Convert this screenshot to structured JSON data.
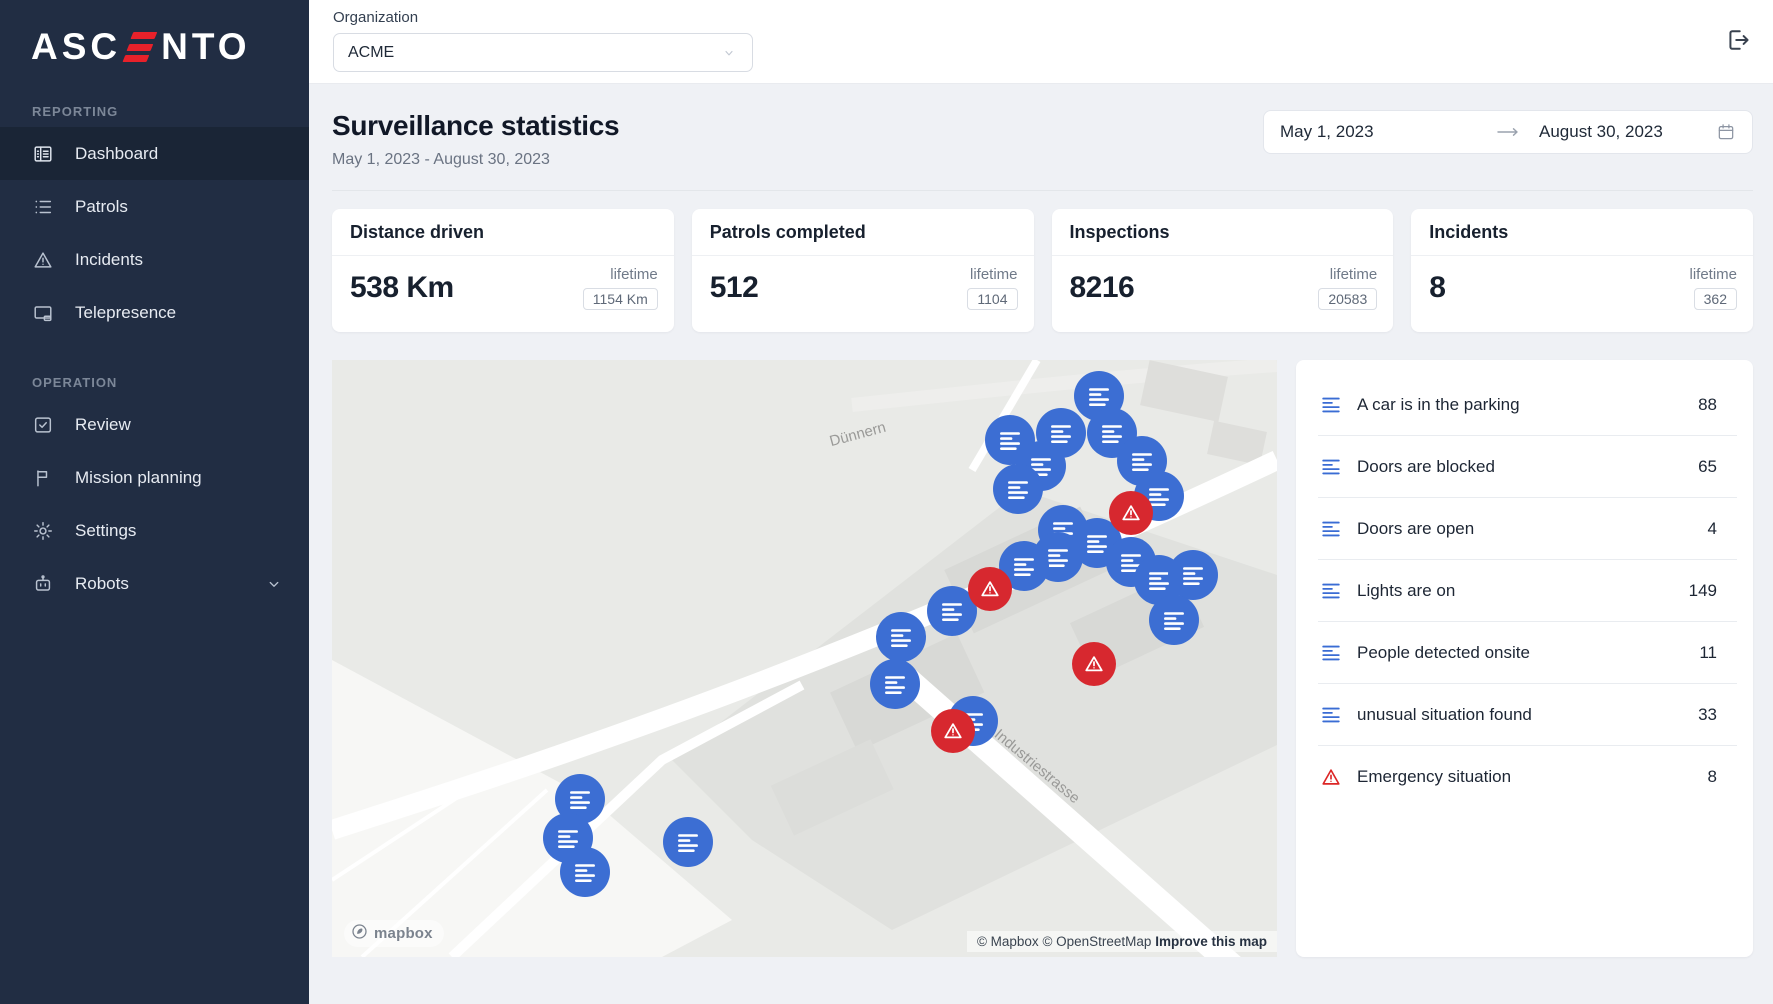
{
  "colors": {
    "accent_red": "#e8212a",
    "marker_blue": "#3c6ed3",
    "marker_red": "#d7282f",
    "sidebar_bg": "#212d43"
  },
  "brand": {
    "prefix": "ASC",
    "suffix": "NTO",
    "full_name": "ASCENTO"
  },
  "sidebar": {
    "sections": [
      {
        "label": "REPORTING",
        "items": [
          {
            "label": "Dashboard",
            "icon": "dashboard-icon",
            "active": true
          },
          {
            "label": "Patrols",
            "icon": "list-icon"
          },
          {
            "label": "Incidents",
            "icon": "warning-triangle-icon"
          },
          {
            "label": "Telepresence",
            "icon": "screen-cast-icon"
          }
        ]
      },
      {
        "label": "OPERATION",
        "items": [
          {
            "label": "Review",
            "icon": "checkbox-icon"
          },
          {
            "label": "Mission planning",
            "icon": "flag-icon"
          },
          {
            "label": "Settings",
            "icon": "gear-icon"
          },
          {
            "label": "Robots",
            "icon": "robot-icon",
            "expandable": true
          }
        ]
      }
    ]
  },
  "topbar": {
    "organization_label": "Organization",
    "organization_value": "ACME"
  },
  "header": {
    "title": "Surveillance statistics",
    "subtitle": "May 1, 2023 - August 30, 2023"
  },
  "date_range": {
    "from": "May 1, 2023",
    "to": "August 30, 2023"
  },
  "stats": [
    {
      "title": "Distance driven",
      "value": "538 Km",
      "lifetime_label": "lifetime",
      "lifetime_value": "1154 Km"
    },
    {
      "title": "Patrols completed",
      "value": "512",
      "lifetime_label": "lifetime",
      "lifetime_value": "1104"
    },
    {
      "title": "Inspections",
      "value": "8216",
      "lifetime_label": "lifetime",
      "lifetime_value": "20583"
    },
    {
      "title": "Incidents",
      "value": "8",
      "lifetime_label": "lifetime",
      "lifetime_value": "362"
    }
  ],
  "map": {
    "street_labels": {
      "river": "Dünnern",
      "street": "Industriestrasse"
    },
    "logo_text": "mapbox",
    "attribution": {
      "mapbox": "© Mapbox",
      "osm": "© OpenStreetMap",
      "improve": "Improve this map"
    },
    "markers": [
      {
        "type": "blue",
        "x": 81.2,
        "y": 6.1
      },
      {
        "type": "blue",
        "x": 77.1,
        "y": 12.3
      },
      {
        "type": "blue",
        "x": 71.7,
        "y": 13.4
      },
      {
        "type": "blue",
        "x": 82.5,
        "y": 12.3
      },
      {
        "type": "blue",
        "x": 75.0,
        "y": 17.8
      },
      {
        "type": "blue",
        "x": 72.6,
        "y": 21.6
      },
      {
        "type": "blue",
        "x": 85.7,
        "y": 16.9
      },
      {
        "type": "blue",
        "x": 87.5,
        "y": 22.7
      },
      {
        "type": "blue",
        "x": 77.4,
        "y": 28.4
      },
      {
        "type": "blue",
        "x": 81.0,
        "y": 30.7
      },
      {
        "type": "blue",
        "x": 76.8,
        "y": 33.0
      },
      {
        "type": "blue",
        "x": 84.6,
        "y": 33.9
      },
      {
        "type": "blue",
        "x": 87.5,
        "y": 36.9
      },
      {
        "type": "blue",
        "x": 91.1,
        "y": 36.0
      },
      {
        "type": "blue",
        "x": 89.1,
        "y": 43.6
      },
      {
        "type": "blue",
        "x": 73.2,
        "y": 34.5
      },
      {
        "type": "blue",
        "x": 65.6,
        "y": 42.0
      },
      {
        "type": "blue",
        "x": 60.2,
        "y": 46.4
      },
      {
        "type": "blue",
        "x": 59.6,
        "y": 54.2
      },
      {
        "type": "blue",
        "x": 67.8,
        "y": 60.4
      },
      {
        "type": "blue",
        "x": 26.2,
        "y": 73.5
      },
      {
        "type": "blue",
        "x": 25.0,
        "y": 80.1
      },
      {
        "type": "blue",
        "x": 26.8,
        "y": 85.8
      },
      {
        "type": "blue",
        "x": 37.7,
        "y": 80.7
      },
      {
        "type": "red",
        "x": 84.6,
        "y": 25.6
      },
      {
        "type": "red",
        "x": 69.6,
        "y": 38.4
      },
      {
        "type": "red",
        "x": 80.6,
        "y": 50.9
      },
      {
        "type": "red",
        "x": 65.7,
        "y": 62.1
      }
    ]
  },
  "incident_summary": [
    {
      "label": "A car is in the parking",
      "value": "88",
      "icon": "lines-icon"
    },
    {
      "label": "Doors are blocked",
      "value": "65",
      "icon": "lines-icon"
    },
    {
      "label": "Doors are open",
      "value": "4",
      "icon": "lines-icon"
    },
    {
      "label": "Lights are on",
      "value": "149",
      "icon": "lines-icon"
    },
    {
      "label": "People detected onsite",
      "value": "11",
      "icon": "lines-icon"
    },
    {
      "label": "unusual situation found",
      "value": "33",
      "icon": "lines-icon"
    },
    {
      "label": "Emergency situation",
      "value": "8",
      "icon": "warning-triangle-icon"
    }
  ]
}
